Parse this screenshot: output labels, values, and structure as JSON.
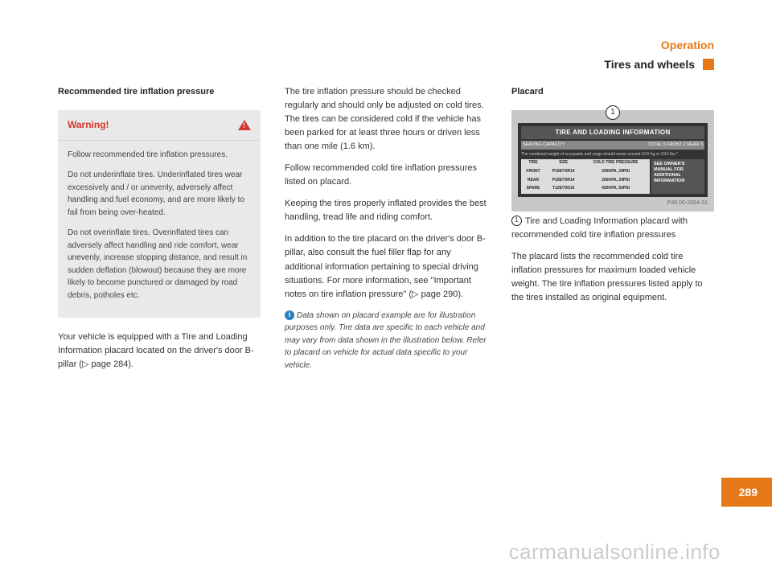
{
  "header": {
    "section": "Operation",
    "subsection": "Tires and wheels"
  },
  "col1": {
    "heading": "Recommended tire inflation pressure",
    "warning": {
      "title": "Warning!",
      "p1": "Follow recommended tire inflation pressures.",
      "p2": "Do not underinflate tires. Underinflated tires wear excessively and / or unevenly, adversely affect handling and fuel economy, and are more likely to fail from being over-heated.",
      "p3": "Do not overinflate tires. Overinflated tires can adversely affect handling and ride comfort, wear unevenly, increase stopping distance, and result in sudden deflation (blowout) because they are more likely to become punctured or damaged by road debris, potholes etc."
    },
    "p1": "Your vehicle is equipped with a Tire and Loading Information placard located on the driver's door B-pillar (▷ page 284)."
  },
  "col2": {
    "p1": "The tire inflation pressure should be checked regularly and should only be adjusted on cold tires. The tires can be considered cold if the vehicle has been parked for at least three hours or driven less than one mile (1.6 km).",
    "p2": "Follow recommended cold tire inflation pressures listed on placard.",
    "p3": "Keeping the tires properly inflated provides the best handling, tread life and riding comfort.",
    "p4": "In addition to the tire placard on the driver's door B-pillar, also consult the fuel filler flap for any additional information pertaining to special driving situations. For more information, see \"Important notes on tire inflation pressure\" (▷ page 290).",
    "note": "Data shown on placard example are for illustration purposes only. Tire data are specific to each vehicle and may vary from data shown in the illustration below. Refer to placard on vehicle for actual data specific to your vehicle."
  },
  "col3": {
    "heading": "Placard",
    "placard": {
      "banner": "TIRE AND LOADING INFORMATION",
      "seating_l": "SEATING CAPACITY",
      "seating_r": "TOTAL 5  FRONT 2  REAR 3",
      "combined": "The combined weight of occupants and cargo should never exceed XXX kg or XXX lbs.*",
      "headers": [
        "TIRE",
        "SIZE",
        "COLD TIRE PRESSURE"
      ],
      "rows": [
        [
          "FRONT",
          "P195/70R14",
          "200KPA, 29PSI"
        ],
        [
          "REAR",
          "P195/70R14",
          "200KPA, 29PSI"
        ],
        [
          "SPARE",
          "T125/70D15",
          "420KPA, 60PSI"
        ]
      ],
      "side": "SEE OWNER'S MANUAL FOR ADDITIONAL INFORMATION",
      "ref": "P40.00-2064-31"
    },
    "caption": "Tire and Loading Information placard with recommended cold tire inflation pressures",
    "p1": "The placard lists the recommended cold tire inflation pressures for maximum loaded vehicle weight. The tire inflation pressures listed apply to the tires installed as original equipment."
  },
  "page_number": "289",
  "watermark": "carmanualsonline.info"
}
